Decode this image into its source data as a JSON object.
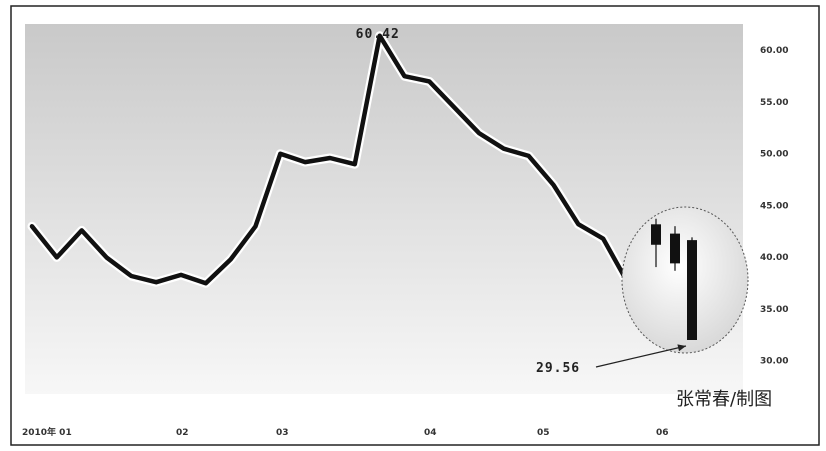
{
  "chart_data": {
    "type": "line",
    "credit": "张常春/制图",
    "yticks": [
      "60.00",
      "55.00",
      "50.00",
      "45.00",
      "40.00",
      "35.00",
      "30.00"
    ],
    "ytick_values": [
      60,
      55,
      50,
      45,
      40,
      35,
      30
    ],
    "ylim": [
      26,
      62
    ],
    "xticks": [
      "2010年 01",
      "02",
      "03",
      "04",
      "05",
      "06"
    ],
    "annotations": {
      "high": "60.42",
      "low": "29.56"
    },
    "series": [
      {
        "values": [
          42.0,
          39.0,
          41.6,
          39.0,
          37.2,
          36.6,
          37.3,
          36.5,
          38.8,
          42.0,
          49.0,
          48.2,
          48.6,
          48.0,
          60.42,
          56.5,
          56.0,
          53.5,
          51.0,
          49.5,
          48.8,
          46.0,
          42.2,
          40.8,
          36.5
        ]
      }
    ],
    "candles": [
      {
        "open": 39.8,
        "high": 42.6,
        "low": 37.4,
        "close": 42.0
      },
      {
        "open": 41.0,
        "high": 41.8,
        "low": 37.0,
        "close": 37.8
      },
      {
        "open": 40.3,
        "high": 40.6,
        "low": 29.56,
        "close": 29.56
      }
    ],
    "colors": {
      "line": "#111111",
      "plot_top": "#c9c9c9",
      "plot_bottom": "#f7f7f7",
      "frame": "#222222"
    }
  }
}
